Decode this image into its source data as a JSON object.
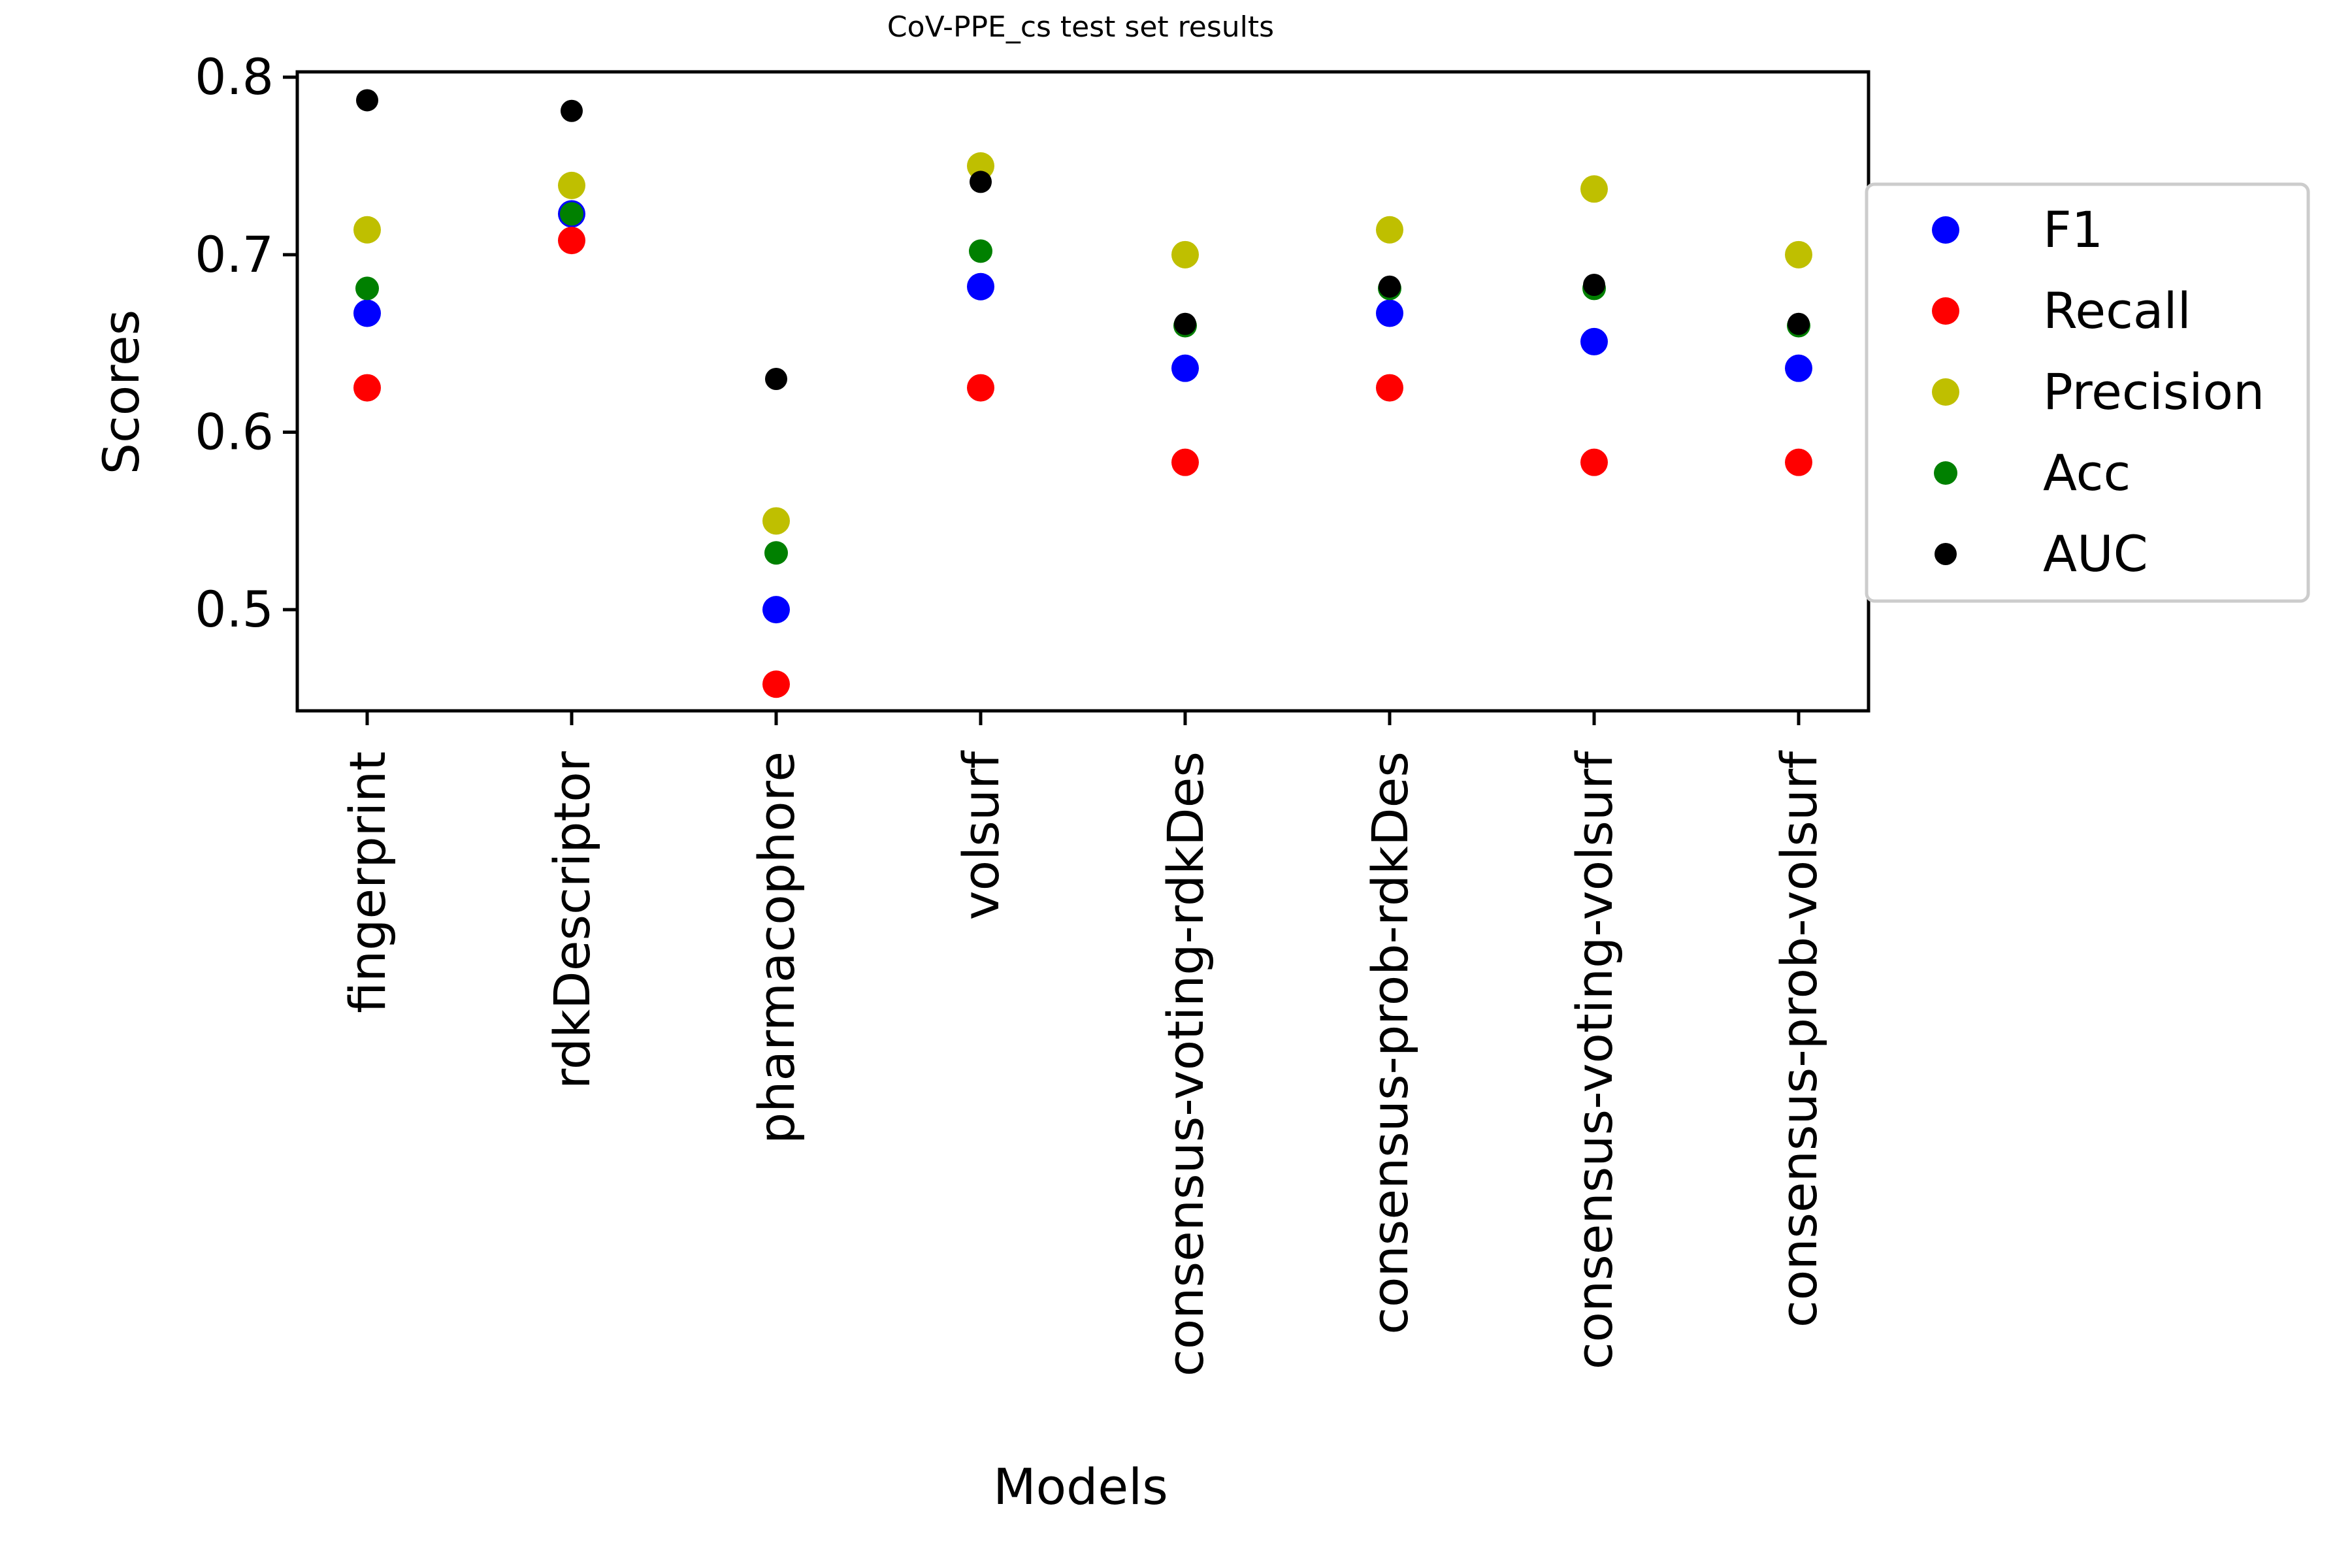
{
  "chart_data": {
    "type": "scatter",
    "title": "CoV-PPE_cs test set results",
    "xlabel": "Models",
    "ylabel": "Scores",
    "ylim": [
      0.443,
      0.803
    ],
    "yticks": [
      "0.5",
      "0.6",
      "0.7",
      "0.8"
    ],
    "grid": false,
    "legend_position": "right",
    "categories": [
      "fingerprint",
      "rdkDescriptor",
      "pharmacophore",
      "volsurf",
      "consensus-voting-rdkDes",
      "consensus-prob-rdkDes",
      "consensus-voting-volsurf",
      "consensus-prob-volsurf"
    ],
    "series": [
      {
        "name": "F1",
        "color": "#0000ff",
        "values": [
          0.667,
          0.723,
          0.5,
          0.682,
          0.636,
          0.667,
          0.651,
          0.636
        ]
      },
      {
        "name": "Recall",
        "color": "#ff0000",
        "values": [
          0.625,
          0.708,
          0.458,
          0.625,
          0.583,
          0.625,
          0.583,
          0.583
        ]
      },
      {
        "name": "Precision",
        "color": "#bfbf00",
        "values": [
          0.714,
          0.739,
          0.55,
          0.75,
          0.7,
          0.714,
          0.737,
          0.7
        ]
      },
      {
        "name": "Acc",
        "color": "#008000",
        "values": [
          0.681,
          0.723,
          0.532,
          0.702,
          0.66,
          0.681,
          0.681,
          0.66
        ]
      },
      {
        "name": "AUC",
        "color": "#000000",
        "values": [
          0.787,
          0.781,
          0.63,
          0.741,
          0.661,
          0.682,
          0.683,
          0.661
        ]
      }
    ]
  }
}
